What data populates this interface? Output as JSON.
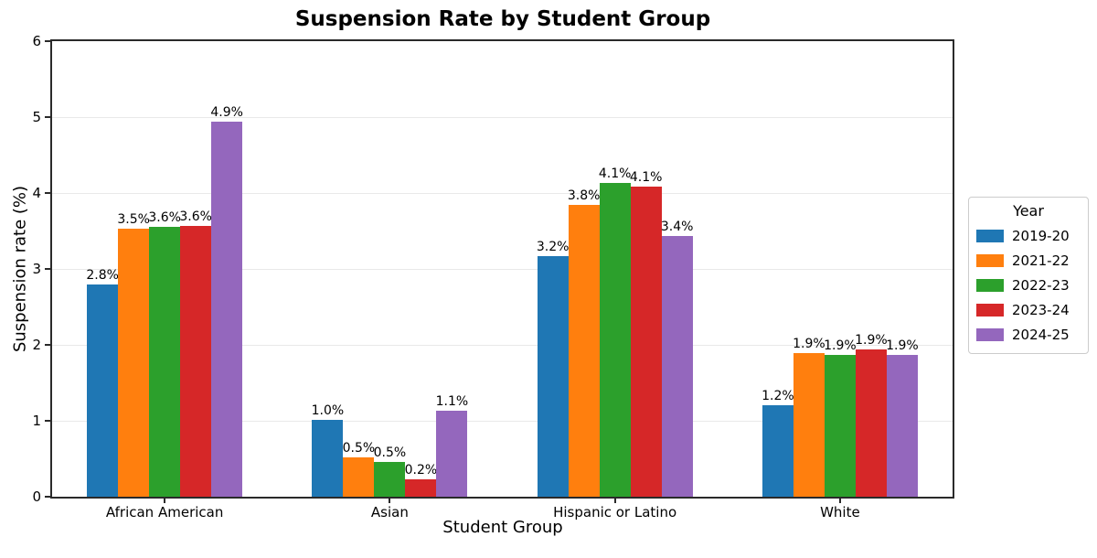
{
  "chart_data": {
    "type": "bar",
    "title": "Suspension Rate by Student Group",
    "xlabel": "Student Group",
    "ylabel": "Suspension rate (%)",
    "ylim": [
      0,
      6
    ],
    "yticks": [
      0,
      1,
      2,
      3,
      4,
      5,
      6
    ],
    "grid": "horizontal light gray lines at integer ticks",
    "legend_title": "Year",
    "legend_position": "outside right, vertically centered",
    "categories": [
      "African American",
      "Asian",
      "Hispanic or Latino",
      "White"
    ],
    "series": [
      {
        "name": "2019-20",
        "color": "#1f77b4",
        "values": [
          2.8,
          1.01,
          3.17,
          1.2
        ],
        "labels": [
          "2.8%",
          "1.0%",
          "3.2%",
          "1.2%"
        ]
      },
      {
        "name": "2021-22",
        "color": "#ff7f0e",
        "values": [
          3.53,
          0.52,
          3.84,
          1.89
        ],
        "labels": [
          "3.5%",
          "0.5%",
          "3.8%",
          "1.9%"
        ]
      },
      {
        "name": "2022-23",
        "color": "#2ca02c",
        "values": [
          3.56,
          0.46,
          4.13,
          1.87
        ],
        "labels": [
          "3.6%",
          "0.5%",
          "4.1%",
          "1.9%"
        ]
      },
      {
        "name": "2023-24",
        "color": "#d62728",
        "values": [
          3.57,
          0.23,
          4.08,
          1.94
        ],
        "labels": [
          "3.6%",
          "0.2%",
          "4.1%",
          "1.9%"
        ]
      },
      {
        "name": "2024-25",
        "color": "#9467bd",
        "values": [
          4.94,
          1.13,
          3.43,
          1.87
        ],
        "labels": [
          "4.9%",
          "1.1%",
          "3.4%",
          "1.9%"
        ]
      }
    ]
  }
}
